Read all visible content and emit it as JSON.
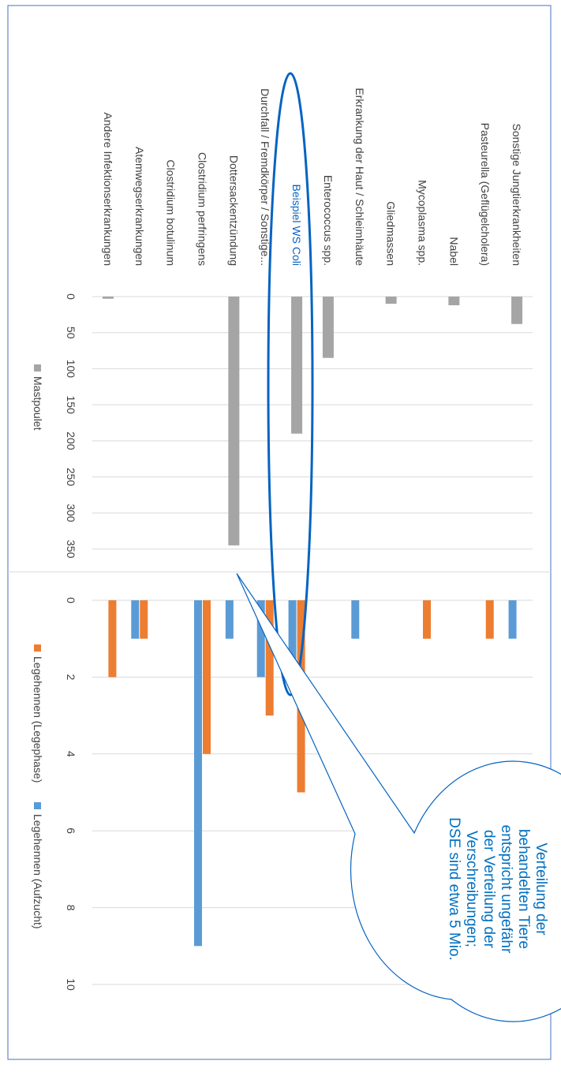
{
  "chart_data": [
    {
      "type": "bar",
      "categories": [
        "Sonstige Jungtierkrankheiten",
        "Pasteurella (Geflügelcholera)",
        "Nabel",
        "Mycoplasma spp.",
        "Gliedmassen",
        "Erkrankung der Haut / Schleimhäute",
        "Enterococcus spp.",
        "Beispiel WS Coli",
        "Durchfall / Fremdkörper / Sonstige...",
        "Dottersackentzündung",
        "Clostridium perfringens",
        "Clostridium botulinum",
        "Atemwegserkrankungen",
        "Andere Infektionserkrankungen"
      ],
      "x_ticks": [
        "0",
        "50",
        "100",
        "150",
        "200",
        "250",
        "300",
        "350"
      ],
      "xlim": [
        0,
        350
      ],
      "series": [
        {
          "name": "Mastpoulet",
          "color": "#a5a5a5",
          "values": [
            38,
            0,
            12,
            0,
            10,
            0,
            85,
            190,
            0,
            345,
            0,
            0,
            0,
            3
          ]
        }
      ],
      "legend_position": "bottom",
      "grid": true
    },
    {
      "type": "bar",
      "x_ticks": [
        "0",
        "2",
        "4",
        "6",
        "8",
        "10"
      ],
      "xlim": [
        0,
        10
      ],
      "series": [
        {
          "name": "Legehennen (Legephase)",
          "color": "#ed7d31",
          "values": [
            0,
            1,
            0,
            1,
            0,
            0,
            0,
            5,
            3,
            0,
            4,
            0,
            1,
            2
          ]
        },
        {
          "name": "Legehennen (Aufzucht)",
          "color": "#5b9bd5",
          "values": [
            1,
            0,
            0,
            0,
            0,
            1,
            0,
            2,
            2,
            1,
            9,
            0,
            1,
            0
          ]
        }
      ],
      "legend_position": "bottom",
      "grid": true
    }
  ],
  "callout": {
    "lines": [
      "Verteilung der",
      "behandelten Tiere",
      "entspricht ungefähr",
      "der Verteilung der",
      "Verschreibungen;",
      "DSE sind etwa 5 Mio."
    ]
  },
  "colors": {
    "highlight": "#0563c1",
    "callout_text": "#0070c0",
    "frame": "#4472c4",
    "axis": "#d9d9d9",
    "label": "#404040"
  }
}
